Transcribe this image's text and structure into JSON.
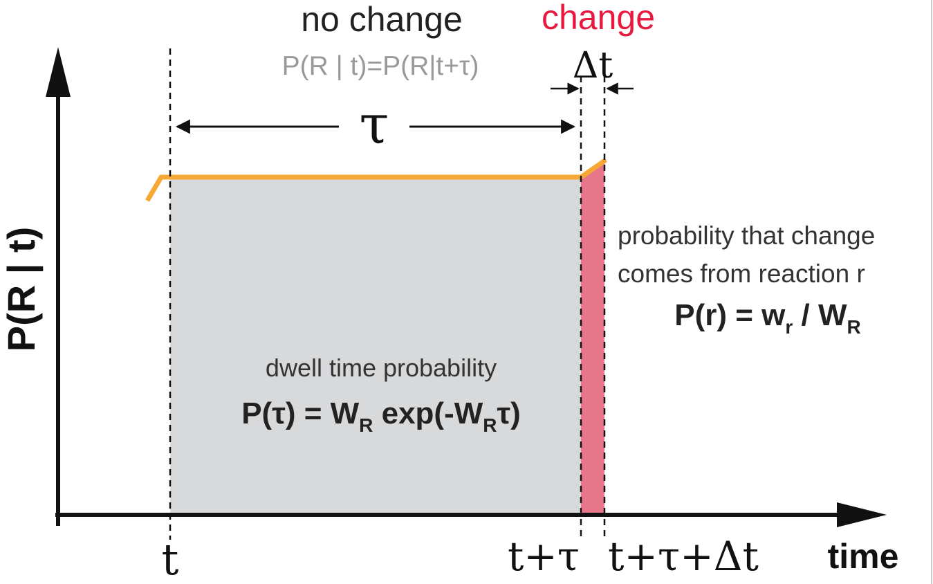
{
  "header": {
    "no_change": "no change",
    "change": "change",
    "invariance_formula": "P(R | t)=P(R|t+τ)",
    "delta_t": "Δt",
    "tau": "τ"
  },
  "axes": {
    "y_label": "P(R | t)",
    "x_label": "time",
    "tick_t": "t",
    "tick_t_tau": "t+τ",
    "tick_t_tau_dt": "t+τ+Δt"
  },
  "dwell": {
    "caption": "dwell time probability",
    "formula_parts": [
      "P(τ) = W",
      "R",
      " exp(-W",
      "R",
      "τ)"
    ]
  },
  "reaction": {
    "line1": "probability that change",
    "line2": "comes from reaction r",
    "formula_parts": [
      "P(r) = w",
      "r",
      " / W",
      "R"
    ]
  },
  "colors": {
    "gray_region": "#d8d9db",
    "change_region": "#e8768a",
    "probability_curve": "#f5a833",
    "change_text": "#e8193f",
    "invariance_text": "#999999",
    "axis": "#111111"
  }
}
